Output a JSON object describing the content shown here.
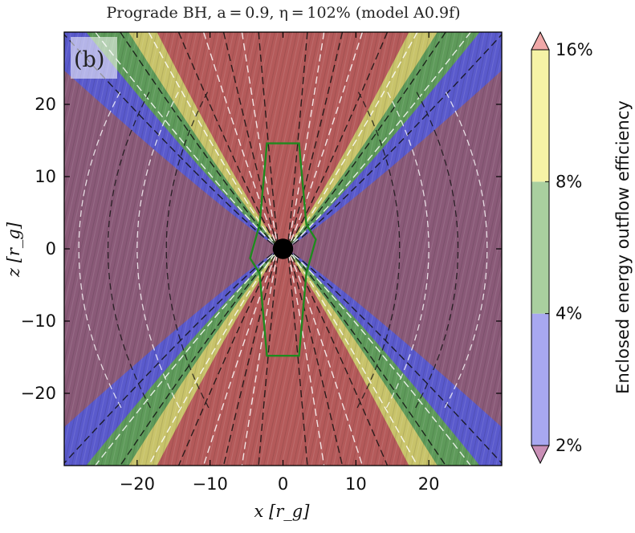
{
  "chart_data": {
    "type": "heatmap",
    "title": "Prograde BH, a = 0.9, η = 102% (model A0.9f)",
    "panel_label": "(b)",
    "xlabel": "x [r_g]",
    "ylabel": "z [r_g]",
    "xlim": [
      -30,
      30
    ],
    "ylim": [
      -30,
      30
    ],
    "xticks": [
      -20,
      -10,
      0,
      10,
      20
    ],
    "yticks": [
      -20,
      -10,
      0,
      10,
      20
    ],
    "xtick_labels": [
      "−20",
      "−10",
      "0",
      "10",
      "20"
    ],
    "ytick_labels": [
      "−20",
      "−10",
      "0",
      "10",
      "20"
    ],
    "grid": false,
    "black_hole": {
      "x": 0,
      "z": 0,
      "radius": 1.4,
      "color": "#000000"
    },
    "colorbar": {
      "label": "Enclosed energy outflow efficiency",
      "scale": "log",
      "range": [
        2,
        16
      ],
      "bands": [
        {
          "from": 0,
          "to": 2,
          "color": "#c98fb6"
        },
        {
          "from": 2,
          "to": 4,
          "color": "#a8a8f0"
        },
        {
          "from": 4,
          "to": 8,
          "color": "#a9cf9f"
        },
        {
          "from": 8,
          "to": 16,
          "color": "#f6f3a6"
        },
        {
          "from": 16,
          "to": 100,
          "color": "#f0a8a8"
        }
      ],
      "tick_labels": [
        {
          "value": 16,
          "label": "16%"
        },
        {
          "value": 8,
          "label": "8%"
        },
        {
          "value": 4,
          "label": "4%"
        },
        {
          "value": 2,
          "label": "2%"
        }
      ]
    },
    "regions": [
      {
        "name": "jet",
        "color": "#b45a5a"
      },
      {
        "name": "yellow-band",
        "color": "#c8c36a"
      },
      {
        "name": "green-band",
        "color": "#5e9a5a"
      },
      {
        "name": "blue-band",
        "color": "#5a5acc"
      },
      {
        "name": "disk",
        "color": "#8a5a78"
      }
    ],
    "contours": [
      {
        "name": "green-contour",
        "color": "#1f8a1f",
        "points": [
          [
            0.6,
            14.6
          ],
          [
            2.2,
            14.6
          ],
          [
            3.2,
            3.4
          ],
          [
            4.5,
            1.3
          ],
          [
            3.2,
            -3.4
          ],
          [
            2.2,
            -14.8
          ],
          [
            -2.2,
            -14.8
          ],
          [
            -3.2,
            -3.4
          ],
          [
            -4.5,
            -1.3
          ],
          [
            -3.2,
            3.4
          ],
          [
            -2.2,
            14.6
          ]
        ]
      }
    ]
  }
}
